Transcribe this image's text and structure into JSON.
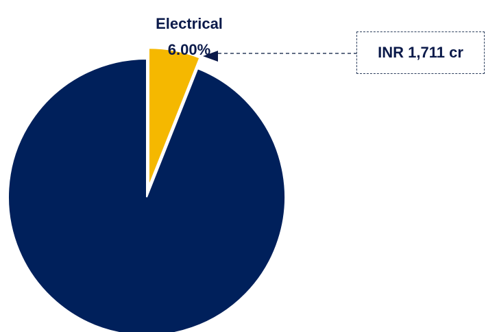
{
  "chart_data": {
    "type": "pie",
    "slices": [
      {
        "label": "Electrical",
        "value_label": "6.00%",
        "value": 6.0,
        "color": "#f5b800",
        "exploded": true
      },
      {
        "label": "",
        "value_label": "",
        "value": 94.0,
        "color": "#00205b",
        "exploded": false
      }
    ],
    "start_angle_deg": 0,
    "direction": "clockwise",
    "callout": {
      "text": "INR 1,711 cr",
      "target_slice": "Electrical",
      "border_style": "dashed"
    },
    "legend": "none"
  }
}
